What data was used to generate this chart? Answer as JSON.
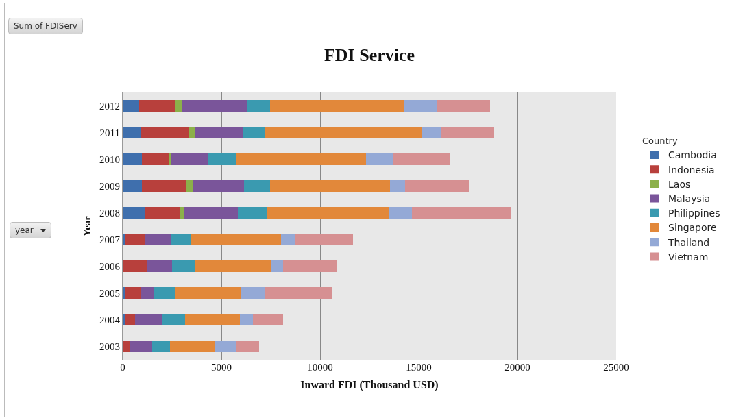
{
  "chart_data": {
    "type": "bar",
    "orientation": "horizontal",
    "stacked": true,
    "title": "FDI Service",
    "xlabel": "Inward FDI (Thousand USD)",
    "ylabel": "Year",
    "legend_title": "Country",
    "legend": "right",
    "grid": "x",
    "annotations": [
      "Sum of FDIServ",
      "year"
    ],
    "categories": [
      "2012",
      "2011",
      "2010",
      "2009",
      "2008",
      "2007",
      "2006",
      "2005",
      "2004",
      "2003"
    ],
    "xlim": [
      0,
      25000
    ],
    "xticks": [
      0,
      5000,
      10000,
      15000,
      20000,
      25000
    ],
    "series": [
      {
        "name": "Cambodia",
        "color": "#3f6fad",
        "values": [
          830,
          920,
          980,
          980,
          1150,
          130,
          30,
          150,
          150,
          30
        ]
      },
      {
        "name": "Indonesia",
        "color": "#b8403c",
        "values": [
          1850,
          2460,
          1360,
          2250,
          1750,
          1020,
          1190,
          800,
          490,
          320
        ]
      },
      {
        "name": "Laos",
        "color": "#8cb04a",
        "values": [
          310,
          290,
          140,
          300,
          230,
          0,
          0,
          0,
          0,
          0
        ]
      },
      {
        "name": "Malaysia",
        "color": "#7a559a",
        "values": [
          3320,
          2430,
          1840,
          2600,
          2710,
          1270,
          1280,
          620,
          1350,
          1160
        ]
      },
      {
        "name": "Philippines",
        "color": "#3a9ab0",
        "values": [
          1140,
          1100,
          1430,
          1340,
          1450,
          1000,
          1190,
          1100,
          1170,
          870
        ]
      },
      {
        "name": "Singapore",
        "color": "#e2883a",
        "values": [
          6790,
          7970,
          6560,
          6070,
          6210,
          4610,
          3820,
          3350,
          2770,
          2270
        ]
      },
      {
        "name": "Thailand",
        "color": "#94a9d6",
        "values": [
          1650,
          930,
          1360,
          750,
          1160,
          700,
          600,
          1200,
          680,
          1070
        ]
      },
      {
        "name": "Vietnam",
        "color": "#d69092",
        "values": [
          2710,
          2730,
          2930,
          3290,
          5040,
          2940,
          2760,
          3420,
          1530,
          1190
        ]
      }
    ]
  }
}
